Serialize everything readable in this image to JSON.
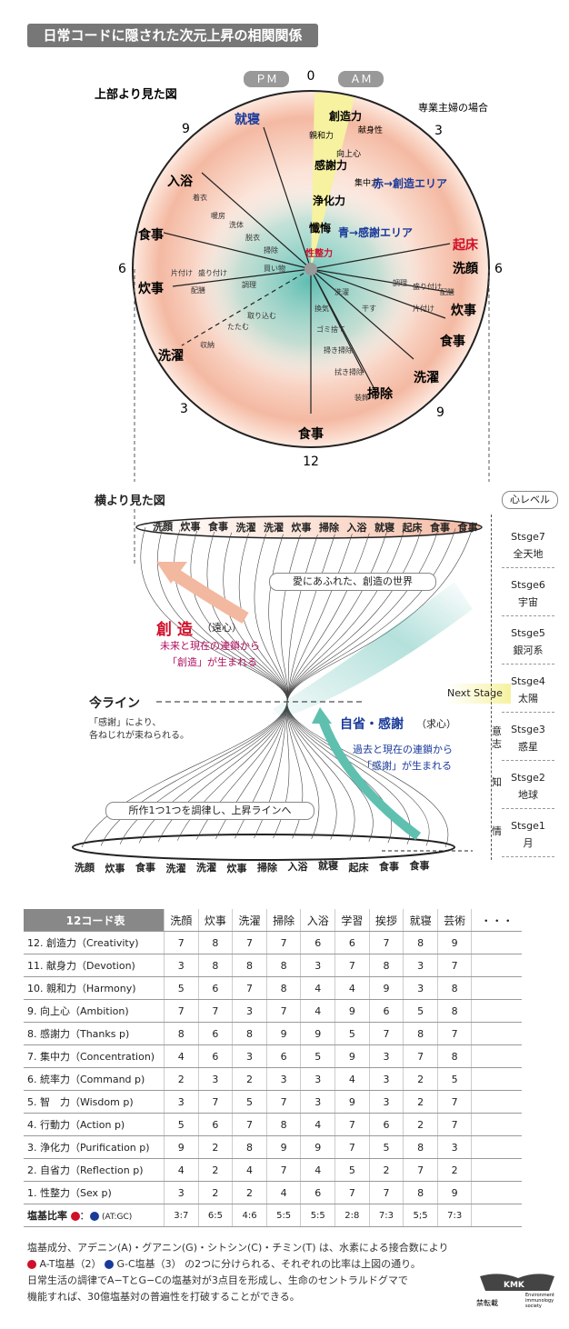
{
  "title": "日常コードに隠された次元上昇の相関関係",
  "top_view": {
    "heading": "上部より見た図",
    "pm": "ＰＭ",
    "am": "ＡＭ",
    "case_note": "専業主婦の場合",
    "clock": {
      "n0": "0",
      "n3r": "3",
      "n6r": "6",
      "n9r": "9",
      "n12": "12",
      "n3l": "3",
      "n6l": "6",
      "n9l": "9"
    },
    "red_area": "赤→創造エリア",
    "blue_area": "青→感謝エリア",
    "spine_labels": [
      "創造力",
      "献身性",
      "親和力",
      "向上心",
      "感謝力",
      "集中力",
      "浄化力",
      "懺悔"
    ],
    "center_label": "性整力",
    "big_labels": {
      "shusin": "就寝",
      "nyuyoku": "入浴",
      "shokuji_l": "食事",
      "suiji_l": "炊事",
      "sentaku_l": "洗濯",
      "shokuji_b": "食事",
      "souji": "掃除",
      "sentaku_r": "洗濯",
      "shokuji_r": "食事",
      "suiji_r": "炊事",
      "sengan": "洗顔",
      "kisho": "起床"
    },
    "small_labels": {
      "chakui": "着衣",
      "danbou": "暖房",
      "sentai": "洗体",
      "dakui": "脱衣",
      "souji_s": "掃除",
      "kaimono": "買い物",
      "katazuke_l": "片付け",
      "moritsuke_l": "盛り付け",
      "haizen_l": "配膳",
      "chouri_l": "調理",
      "torikomu": "取り込む",
      "tatamu": "たたむ",
      "shuno": "収納",
      "kanki": "換気",
      "gomisute": "ゴミ捨て",
      "hakisouji": "掃き掃除",
      "fukisouji": "拭き掃除",
      "soushoku": "装飾",
      "senzai": "洗濯",
      "hosu": "干す",
      "chouri_r": "調理",
      "moritsuke_r": "盛り付け",
      "haizen_r": "配膳",
      "katazuke_r": "片付け"
    }
  },
  "side_view": {
    "heading": "横より見た図",
    "level_header": "心レベル",
    "top_ring": [
      "洗顔",
      "炊事",
      "食事",
      "洗濯",
      "洗濯",
      "炊事",
      "掃除",
      "入浴",
      "就寝",
      "起床",
      "食事",
      "食事"
    ],
    "bottom_ring": [
      "洗顔",
      "炊事",
      "食事",
      "洗濯",
      "洗濯",
      "炊事",
      "掃除",
      "入浴",
      "就寝",
      "起床",
      "食事",
      "食事"
    ],
    "world_box": "愛にあふれた、創造の世界",
    "creation_title": "創 造",
    "creation_sub": "（遠心）",
    "creation_line1": "未来と現在の連鎖から",
    "creation_line2": "「創造」が生まれる",
    "now_line": "今ライン",
    "now_note1": "「感謝」により、",
    "now_note2": "各ねじれが束ねられる。",
    "reflect_title": "自省・感謝",
    "reflect_sub": "（求心）",
    "reflect_line1": "過去と現在の連鎖から",
    "reflect_line2": "「感謝」が生まれる",
    "rise_box": "所作1つ1つを調律し、上昇ラインへ",
    "next_stage": "Next Stage",
    "side_chars": {
      "i": "意",
      "shi": "志",
      "chi": "知",
      "jo": "情"
    },
    "levels": [
      {
        "stage": "Stsge7",
        "name": "全天地"
      },
      {
        "stage": "Stsge6",
        "name": "宇宙"
      },
      {
        "stage": "Stsge5",
        "name": "銀河系"
      },
      {
        "stage": "Stsge4",
        "name": "太陽"
      },
      {
        "stage": "Stsge3",
        "name": "惑星"
      },
      {
        "stage": "Stsge2",
        "name": "地球"
      },
      {
        "stage": "Stsge1",
        "name": "月"
      }
    ]
  },
  "table": {
    "title": "12コード表",
    "columns": [
      "洗顔",
      "炊事",
      "洗濯",
      "掃除",
      "入浴",
      "学習",
      "挨拶",
      "就寝",
      "芸術",
      "・・・"
    ],
    "rows": [
      {
        "label": "12. 創造力（Creativity)",
        "values": [
          "7",
          "8",
          "7",
          "7",
          "6",
          "6",
          "7",
          "8",
          "9"
        ]
      },
      {
        "label": "11. 献身力（Devotion)",
        "values": [
          "3",
          "8",
          "8",
          "8",
          "3",
          "7",
          "8",
          "3",
          "7"
        ]
      },
      {
        "label": "10. 親和力（Harmony)",
        "values": [
          "5",
          "6",
          "7",
          "8",
          "4",
          "4",
          "9",
          "3",
          "8"
        ]
      },
      {
        "label": "9. 向上心（Ambition)",
        "values": [
          "7",
          "7",
          "3",
          "7",
          "4",
          "9",
          "6",
          "5",
          "8"
        ]
      },
      {
        "label": "8. 感謝力（Thanks p)",
        "values": [
          "8",
          "6",
          "8",
          "9",
          "9",
          "5",
          "7",
          "8",
          "7"
        ]
      },
      {
        "label": "7. 集中力（Concentration)",
        "values": [
          "4",
          "6",
          "3",
          "6",
          "5",
          "9",
          "3",
          "7",
          "8"
        ]
      },
      {
        "label": "6. 統率力（Command p)",
        "values": [
          "2",
          "3",
          "2",
          "3",
          "3",
          "4",
          "3",
          "2",
          "5"
        ]
      },
      {
        "label": "5. 智　力（Wisdom p)",
        "values": [
          "3",
          "7",
          "5",
          "7",
          "3",
          "9",
          "3",
          "2",
          "7"
        ]
      },
      {
        "label": "4. 行動力（Action p)",
        "values": [
          "5",
          "6",
          "7",
          "8",
          "4",
          "7",
          "6",
          "2",
          "7"
        ]
      },
      {
        "label": "3. 浄化力（Purification p)",
        "values": [
          "9",
          "2",
          "8",
          "9",
          "9",
          "7",
          "5",
          "8",
          "3"
        ]
      },
      {
        "label": "2. 自省力（Reflection p)",
        "values": [
          "4",
          "2",
          "4",
          "7",
          "4",
          "5",
          "2",
          "7",
          "2"
        ]
      },
      {
        "label": "1. 性整力（Sex p)",
        "values": [
          "3",
          "2",
          "2",
          "4",
          "6",
          "7",
          "7",
          "8",
          "9"
        ]
      }
    ],
    "ratio_label": "塩基比率",
    "ratio_sep": "：",
    "ratio_note": "(AT:GC)",
    "ratios": [
      "3:7",
      "6:5",
      "4:6",
      "5:5",
      "5:5",
      "2:8",
      "7:3",
      "5;5",
      "7:3"
    ]
  },
  "footnote": {
    "line1": "塩基成分、アデニン(A)・グアニン(G)・シトシン(C)・チミン(T) は、水素による接合数により",
    "line2a": "A-T塩基（2）",
    "line2b": "G-C塩基（3） の2つに分けられる、それぞれの比率は上図の通り。",
    "line3": "日常生活の調律でA−TとG−Cの塩基対が3点目を形成し、生命のセントラルドグマで",
    "line4": "機能すれば、30億塩基対の普遍性を打破することができる。"
  },
  "logo": {
    "mark": "KMK",
    "sub1": "Environment",
    "sub2": "immunology",
    "sub3": "society",
    "jp": "禁転載"
  },
  "colors": {
    "red": "#d0102a",
    "blue": "#1a3a9a",
    "teal": "#2aa89a",
    "salmon": "#e89a80",
    "yellow": "#f6f2a0"
  }
}
